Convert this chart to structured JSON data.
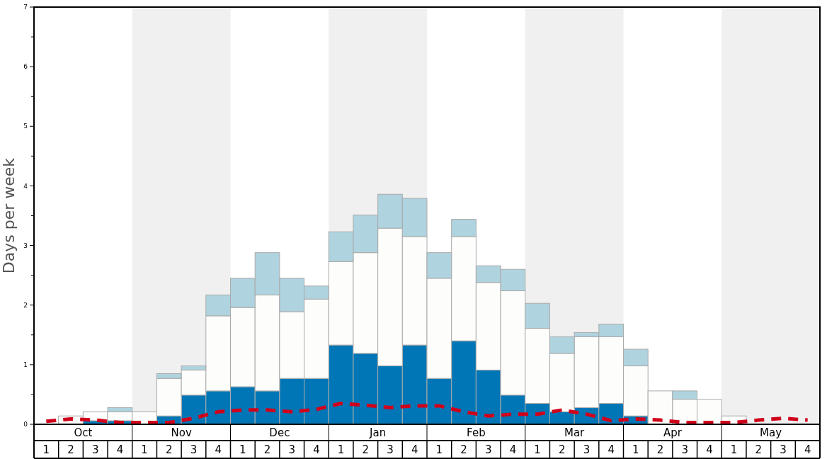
{
  "chart_data": {
    "type": "bar",
    "stacked": true,
    "ylabel": "Days per week",
    "categories": [
      "1",
      "2",
      "3",
      "4",
      "1",
      "2",
      "3",
      "4",
      "1",
      "2",
      "3",
      "4",
      "1",
      "2",
      "3",
      "4",
      "1",
      "2",
      "3",
      "4",
      "1",
      "2",
      "3",
      "4",
      "1",
      "2",
      "3",
      "4",
      "1",
      "2",
      "3",
      "4"
    ],
    "series": [
      {
        "color": "#0076b6",
        "values": [
          0,
          0,
          0.06,
          0.06,
          0,
          0.14,
          0.49,
          0.56,
          0.63,
          0.56,
          0.77,
          0.77,
          1.33,
          1.19,
          0.98,
          1.33,
          0.77,
          1.4,
          0.91,
          0.49,
          0.35,
          0.21,
          0.28,
          0.35,
          0.14,
          0,
          0,
          0,
          0,
          0,
          0,
          0
        ]
      },
      {
        "color": "#fdfdfb",
        "values": [
          0,
          0.14,
          0.15,
          0.15,
          0.21,
          0.63,
          0.42,
          1.26,
          1.33,
          1.61,
          1.12,
          1.33,
          1.4,
          1.69,
          2.31,
          1.82,
          1.68,
          1.75,
          1.47,
          1.75,
          1.26,
          0.98,
          1.19,
          1.12,
          0.84,
          0.56,
          0.42,
          0.42,
          0.14,
          0,
          0,
          0
        ]
      },
      {
        "color": "#afd3df",
        "values": [
          0,
          0,
          0,
          0.07,
          0,
          0.08,
          0.07,
          0.35,
          0.49,
          0.71,
          0.56,
          0.22,
          0.5,
          0.63,
          0.57,
          0.64,
          0.43,
          0.29,
          0.28,
          0.36,
          0.42,
          0.28,
          0.07,
          0.21,
          0.28,
          0,
          0.14,
          0,
          0,
          0,
          0,
          0
        ]
      },
      {
        "type": "line",
        "color": "#d0021b",
        "line_style": "dashed",
        "values": [
          0.05,
          0.09,
          0.07,
          0.03,
          0.03,
          0.03,
          0.1,
          0.21,
          0.24,
          0.24,
          0.21,
          0.25,
          0.35,
          0.32,
          0.28,
          0.31,
          0.31,
          0.21,
          0.14,
          0.17,
          0.17,
          0.24,
          0.17,
          0.06,
          0.09,
          0.07,
          0.03,
          0.03,
          0.03,
          0.07,
          0.1,
          0.07
        ]
      }
    ],
    "ylim": [
      0,
      7
    ],
    "yticks": [
      0,
      {
        "value": 0.5,
        "label": null
      },
      1,
      {
        "value": 1.5,
        "label": null
      },
      2,
      {
        "value": 2.5,
        "label": null
      },
      3,
      {
        "value": 3.5,
        "label": null
      },
      4,
      {
        "value": 4.5,
        "label": null
      },
      5,
      {
        "value": 5.5,
        "label": null
      },
      6,
      {
        "value": 6.5,
        "label": null
      },
      7
    ],
    "annotations": [
      "Oct",
      "Nov",
      "Dec",
      "Jan",
      "Feb",
      "Mar",
      "Apr",
      "May"
    ]
  }
}
